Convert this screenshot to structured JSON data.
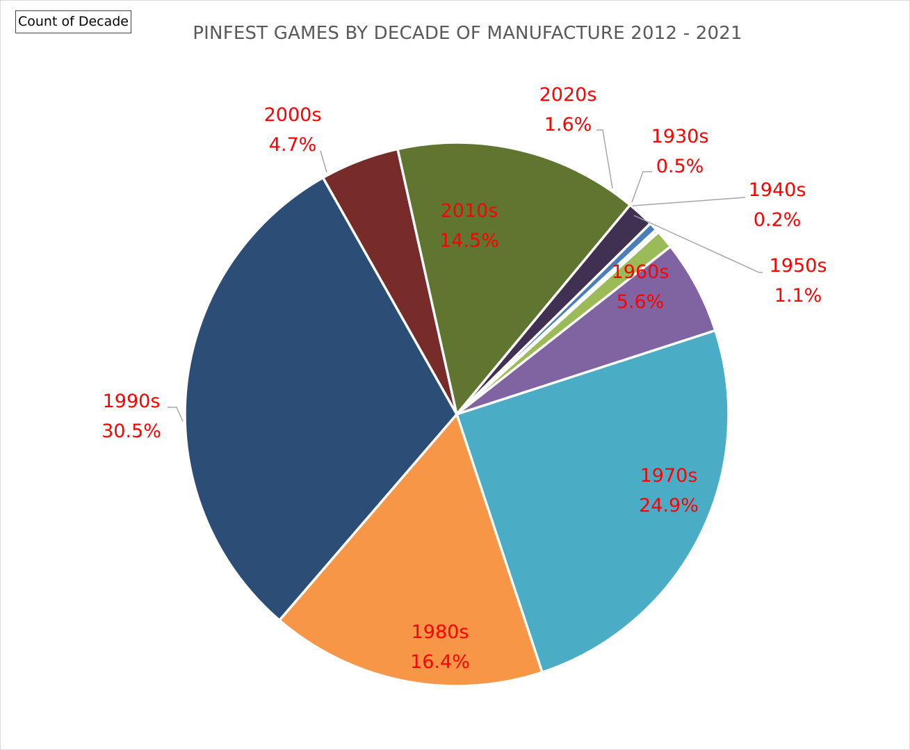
{
  "field_button": {
    "label": "Count of Decade"
  },
  "chart_data": {
    "type": "pie",
    "title": "PINFEST GAMES BY DECADE OF MANUFACTURE 2012 - 2021",
    "slices": [
      {
        "label": "1930s",
        "value": 0.5,
        "pct": "0.5%",
        "color": "#4a7ebb"
      },
      {
        "label": "1940s",
        "value": 0.2,
        "pct": "0.2%",
        "color": "#f4f4f4"
      },
      {
        "label": "1950s",
        "value": 1.1,
        "pct": "1.1%",
        "color": "#9bbb59"
      },
      {
        "label": "1960s",
        "value": 5.6,
        "pct": "5.6%",
        "color": "#8064a2"
      },
      {
        "label": "1970s",
        "value": 24.9,
        "pct": "24.9%",
        "color": "#4bacc6"
      },
      {
        "label": "1980s",
        "value": 16.4,
        "pct": "16.4%",
        "color": "#f79646"
      },
      {
        "label": "1990s",
        "value": 30.5,
        "pct": "30.5%",
        "color": "#2c4d75"
      },
      {
        "label": "2000s",
        "value": 4.7,
        "pct": "4.7%",
        "color": "#772c2a"
      },
      {
        "label": "2010s",
        "value": 14.5,
        "pct": "14.5%",
        "color": "#5f7530"
      },
      {
        "label": "2020s",
        "value": 1.6,
        "pct": "1.6%",
        "color": "#403152"
      }
    ],
    "label_color": "#ff0000"
  }
}
